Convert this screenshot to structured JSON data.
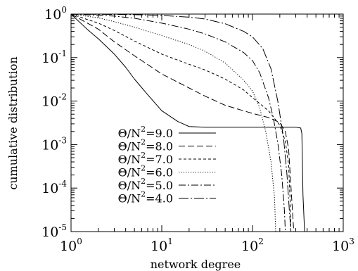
{
  "chart_data": {
    "type": "line",
    "title": "",
    "xlabel": "network degree",
    "ylabel": "cumulative distribution",
    "x_scale": "log",
    "y_scale": "log",
    "xlim": [
      1,
      1000
    ],
    "ylim": [
      1e-05,
      1
    ],
    "grid": false,
    "legend_position": "bottom-left",
    "x_ticks": [
      {
        "value": 1,
        "base": "10",
        "exp": "0"
      },
      {
        "value": 10,
        "base": "10",
        "exp": "1"
      },
      {
        "value": 100,
        "base": "10",
        "exp": "2"
      },
      {
        "value": 1000,
        "base": "10",
        "exp": "3"
      }
    ],
    "y_ticks": [
      {
        "value": 1,
        "base": "10",
        "exp": "0"
      },
      {
        "value": 0.1,
        "base": "10",
        "exp": "-1"
      },
      {
        "value": 0.01,
        "base": "10",
        "exp": "-2"
      },
      {
        "value": 0.001,
        "base": "10",
        "exp": "-3"
      },
      {
        "value": 0.0001,
        "base": "10",
        "exp": "-4"
      },
      {
        "value": 1e-05,
        "base": "10",
        "exp": "-5"
      }
    ],
    "series": [
      {
        "name": "Θ/N²=9.0",
        "label_prefix": "Θ/N",
        "label_exp": "2",
        "label_suffix": "=9.0",
        "dash": "solid",
        "points": [
          [
            1,
            1
          ],
          [
            1.5,
            0.45
          ],
          [
            2,
            0.27
          ],
          [
            3,
            0.12
          ],
          [
            4,
            0.06
          ],
          [
            5,
            0.032
          ],
          [
            7,
            0.014
          ],
          [
            10,
            0.006
          ],
          [
            15,
            0.0034
          ],
          [
            20,
            0.0026
          ],
          [
            30,
            0.0025
          ],
          [
            100,
            0.0025
          ],
          [
            300,
            0.0025
          ],
          [
            340,
            0.0024
          ],
          [
            350,
            0.0018
          ],
          [
            360,
            7e-05
          ],
          [
            375,
            1e-05
          ]
        ]
      },
      {
        "name": "Θ/N²=8.0",
        "label_prefix": "Θ/N",
        "label_exp": "2",
        "label_suffix": "=8.0",
        "dash": "long-dash",
        "points": [
          [
            1,
            1
          ],
          [
            2,
            0.45
          ],
          [
            3,
            0.23
          ],
          [
            5,
            0.11
          ],
          [
            10,
            0.042
          ],
          [
            20,
            0.02
          ],
          [
            30,
            0.013
          ],
          [
            50,
            0.008
          ],
          [
            100,
            0.0052
          ],
          [
            150,
            0.0042
          ],
          [
            200,
            0.0032
          ],
          [
            230,
            0.002
          ],
          [
            250,
            0.0008
          ],
          [
            270,
            6e-05
          ],
          [
            285,
            1e-05
          ]
        ]
      },
      {
        "name": "Θ/N²=7.0",
        "label_prefix": "Θ/N",
        "label_exp": "2",
        "label_suffix": "=7.0",
        "dash": "short-dash",
        "points": [
          [
            1,
            1
          ],
          [
            2,
            0.62
          ],
          [
            3,
            0.42
          ],
          [
            5,
            0.24
          ],
          [
            10,
            0.12
          ],
          [
            20,
            0.07
          ],
          [
            30,
            0.052
          ],
          [
            50,
            0.032
          ],
          [
            80,
            0.018
          ],
          [
            100,
            0.012
          ],
          [
            150,
            0.006
          ],
          [
            200,
            0.0028
          ],
          [
            230,
            0.0012
          ],
          [
            250,
            0.00035
          ],
          [
            260,
            5e-05
          ],
          [
            265,
            1e-05
          ]
        ]
      },
      {
        "name": "Θ/N²=6.0",
        "label_prefix": "Θ/N",
        "label_exp": "2",
        "label_suffix": "=6.0",
        "dash": "dotted",
        "points": [
          [
            1,
            1
          ],
          [
            2,
            0.82
          ],
          [
            3,
            0.67
          ],
          [
            5,
            0.5
          ],
          [
            10,
            0.32
          ],
          [
            20,
            0.2
          ],
          [
            30,
            0.14
          ],
          [
            50,
            0.075
          ],
          [
            80,
            0.03
          ],
          [
            100,
            0.017
          ],
          [
            120,
            0.007
          ],
          [
            140,
            0.002
          ],
          [
            160,
            0.0004
          ],
          [
            175,
            6e-05
          ],
          [
            180,
            1e-05
          ]
        ]
      },
      {
        "name": "Θ/N²=5.0",
        "label_prefix": "Θ/N",
        "label_exp": "2",
        "label_suffix": "=5.0",
        "dash": "dash-dot",
        "points": [
          [
            1,
            1
          ],
          [
            3,
            0.9
          ],
          [
            5,
            0.8
          ],
          [
            10,
            0.62
          ],
          [
            20,
            0.45
          ],
          [
            30,
            0.35
          ],
          [
            50,
            0.23
          ],
          [
            80,
            0.13
          ],
          [
            100,
            0.085
          ],
          [
            120,
            0.045
          ],
          [
            150,
            0.012
          ],
          [
            170,
            0.004
          ],
          [
            190,
            0.0011
          ],
          [
            210,
            0.0002
          ],
          [
            225,
            3e-05
          ],
          [
            230,
            1e-05
          ]
        ]
      },
      {
        "name": "Θ/N²=4.0",
        "label_prefix": "Θ/N",
        "label_exp": "2",
        "label_suffix": "=4.0",
        "dash": "dash-dot-long",
        "points": [
          [
            1,
            1
          ],
          [
            5,
            0.97
          ],
          [
            10,
            0.93
          ],
          [
            20,
            0.85
          ],
          [
            30,
            0.77
          ],
          [
            50,
            0.6
          ],
          [
            80,
            0.4
          ],
          [
            100,
            0.3
          ],
          [
            130,
            0.16
          ],
          [
            160,
            0.055
          ],
          [
            190,
            0.01
          ],
          [
            220,
            0.0014
          ],
          [
            240,
            0.0002
          ],
          [
            255,
            3e-05
          ],
          [
            265,
            1e-05
          ]
        ]
      }
    ]
  }
}
